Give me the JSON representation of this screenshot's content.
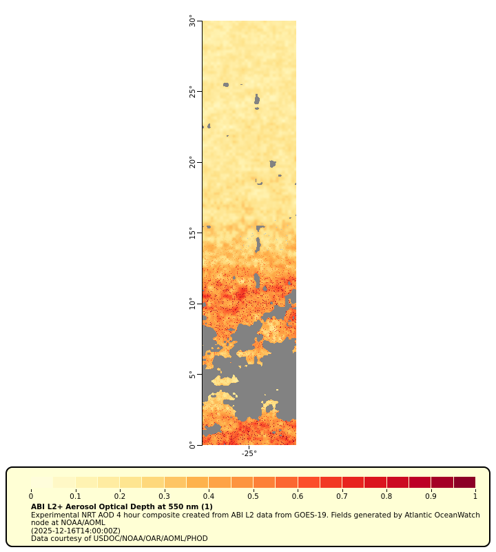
{
  "figure": {
    "legend": {
      "title": "ABI L2+ Aerosol Optical Depth at 550 nm (1)",
      "description": "Experimental NRT AOD 4 hour composite created from ABI L2 data from GOES-19. Fields generated by Atlantic OceanWatch node at NOAA/AOML",
      "timestamp": "(2025-12-16T14:00:00Z)",
      "courtesy": "Data courtesy of USDOC/NOAA/OAR/AOML/PHOD",
      "background": "#ffffd5"
    }
  },
  "chart_data": {
    "type": "heatmap",
    "title": "ABI L2+ Aerosol Optical Depth at 550 nm (1)",
    "variable": "Aerosol Optical Depth at 550 nm",
    "satellite": "GOES-19",
    "lat_axis": {
      "min": 0,
      "max": 30,
      "tick_interval": 5,
      "tick_labels": [
        "0°",
        "5°",
        "10°",
        "15°",
        "20°",
        "25°",
        "30°"
      ]
    },
    "lon_axis": {
      "tick_labels": [
        "-25°"
      ]
    },
    "colorbar": {
      "min": 0,
      "max": 1,
      "segments": 20,
      "tick_labels": [
        "0",
        "0.1",
        "0.2",
        "0.3",
        "0.4",
        "0.5",
        "0.6",
        "0.7",
        "0.8",
        "0.9",
        "1"
      ],
      "colormap": [
        {
          "pos": 0.0,
          "color": "#ffffe5"
        },
        {
          "pos": 0.125,
          "color": "#fff3b2"
        },
        {
          "pos": 0.25,
          "color": "#fee187"
        },
        {
          "pos": 0.375,
          "color": "#feb24c"
        },
        {
          "pos": 0.5,
          "color": "#fd8d3c"
        },
        {
          "pos": 0.625,
          "color": "#fc4e2a"
        },
        {
          "pos": 0.75,
          "color": "#e31a1c"
        },
        {
          "pos": 0.875,
          "color": "#bd0026"
        },
        {
          "pos": 1.0,
          "color": "#800026"
        }
      ]
    },
    "no_data_color": "#828282",
    "cloud_speck_color": "#a9bfd4",
    "field_by_latitude": [
      {
        "lat_range": [
          27,
          30
        ],
        "coverage": 0.93,
        "mean_aod": 0.2
      },
      {
        "lat_range": [
          22,
          27
        ],
        "coverage": 0.9,
        "mean_aod": 0.2
      },
      {
        "lat_range": [
          18,
          22
        ],
        "coverage": 0.88,
        "mean_aod": 0.22
      },
      {
        "lat_range": [
          15,
          18
        ],
        "coverage": 0.82,
        "mean_aod": 0.24
      },
      {
        "lat_range": [
          12,
          15
        ],
        "coverage": 0.88,
        "mean_aod": 0.34
      },
      {
        "lat_range": [
          9.5,
          12
        ],
        "coverage": 0.8,
        "mean_aod": 0.52
      },
      {
        "lat_range": [
          7,
          9.5
        ],
        "coverage": 0.5,
        "mean_aod": 0.48
      },
      {
        "lat_range": [
          5,
          7
        ],
        "coverage": 0.28,
        "mean_aod": 0.4
      },
      {
        "lat_range": [
          2.5,
          5
        ],
        "coverage": 0.04,
        "mean_aod": 0.3
      },
      {
        "lat_range": [
          0,
          2.5
        ],
        "coverage": 0.72,
        "mean_aod": 0.52
      }
    ]
  }
}
